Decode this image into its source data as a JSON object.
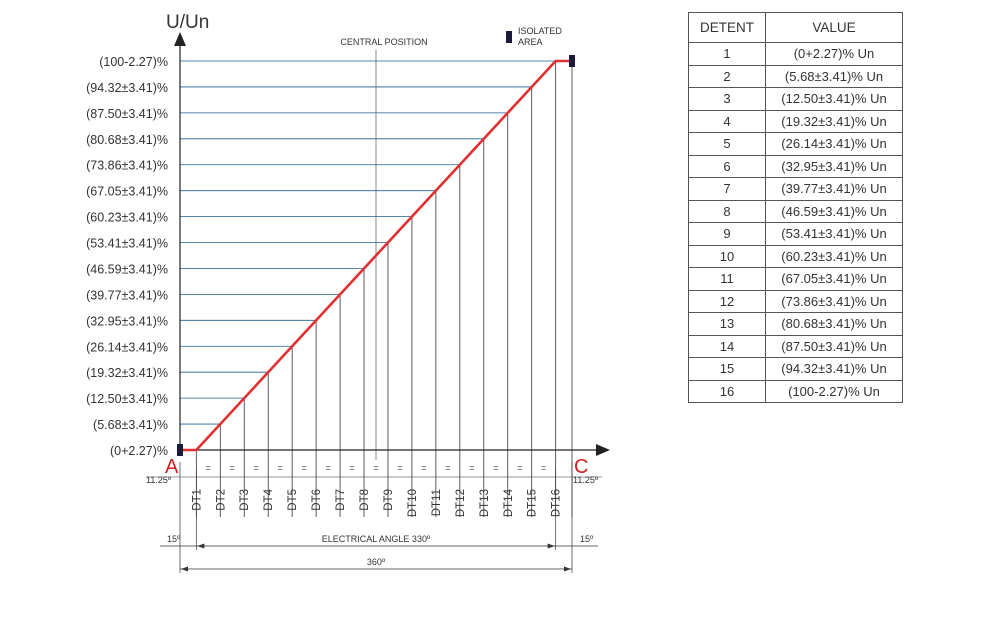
{
  "chart_data": {
    "type": "line",
    "ylabel": "U/Un",
    "y_tick_labels": [
      "(0+2.27)%",
      "(5.68±3.41)%",
      "(12.50±3.41)%",
      "(19.32±3.41)%",
      "(26.14±3.41)%",
      "(32.95±3.41)%",
      "(39.77±3.41)%",
      "(46.59±3.41)%",
      "(53.41±3.41)%",
      "(60.23±3.41)%",
      "(67.05±3.41)%",
      "(73.86±3.41)%",
      "(80.68±3.41)%",
      "(87.50±3.41)%",
      "(94.32±3.41)%",
      "(100-2.27)%"
    ],
    "x_tick_labels": [
      "DT1",
      "DT2",
      "DT3",
      "DT4",
      "DT5",
      "DT6",
      "DT7",
      "DT8",
      "DT9",
      "DT10",
      "DT11",
      "DT12",
      "DT13",
      "DT14",
      "DT15",
      "DT16"
    ],
    "series": [
      {
        "color": "#e03030",
        "x": [
          0,
          15,
          345,
          360
        ],
        "y": [
          0,
          0,
          100,
          100
        ]
      }
    ],
    "detent_angles_deg": [
      15,
      37,
      59,
      81,
      103,
      125,
      147,
      169,
      191,
      213,
      235,
      257,
      279,
      301,
      323,
      345
    ],
    "xlim": [
      0,
      360
    ],
    "ylim": [
      0,
      100
    ],
    "annotations": {
      "central_position": "CENTRAL POSITION",
      "isolated_area": "ISOLATED\nAREA",
      "point_a": "A",
      "point_c": "C",
      "left_angle": "11.25º",
      "right_angle": "11.25º",
      "equal_mark": "=",
      "dim_left": "15º",
      "dim_right": "15º",
      "dim_electrical": "ELECTRICAL ANGLE 330º",
      "dim_total": "360º"
    },
    "colors": {
      "line": "#e03030",
      "grid": "#1f5f9a",
      "axis": "#222222",
      "isolated_marker": "#1a1a3a",
      "point_labels": "#d42020"
    }
  },
  "table": {
    "headers": [
      "DETENT",
      "VALUE"
    ],
    "rows": [
      [
        "1",
        "(0+2.27)% Un"
      ],
      [
        "2",
        "(5.68±3.41)% Un"
      ],
      [
        "3",
        "(12.50±3.41)% Un"
      ],
      [
        "4",
        "(19.32±3.41)% Un"
      ],
      [
        "5",
        "(26.14±3.41)% Un"
      ],
      [
        "6",
        "(32.95±3.41)% Un"
      ],
      [
        "7",
        "(39.77±3.41)% Un"
      ],
      [
        "8",
        "(46.59±3.41)% Un"
      ],
      [
        "9",
        "(53.41±3.41)% Un"
      ],
      [
        "10",
        "(60.23±3.41)% Un"
      ],
      [
        "11",
        "(67.05±3.41)% Un"
      ],
      [
        "12",
        "(73.86±3.41)% Un"
      ],
      [
        "13",
        "(80.68±3.41)% Un"
      ],
      [
        "14",
        "(87.50±3.41)% Un"
      ],
      [
        "15",
        "(94.32±3.41)% Un"
      ],
      [
        "16",
        "(100-2.27)% Un"
      ]
    ]
  }
}
